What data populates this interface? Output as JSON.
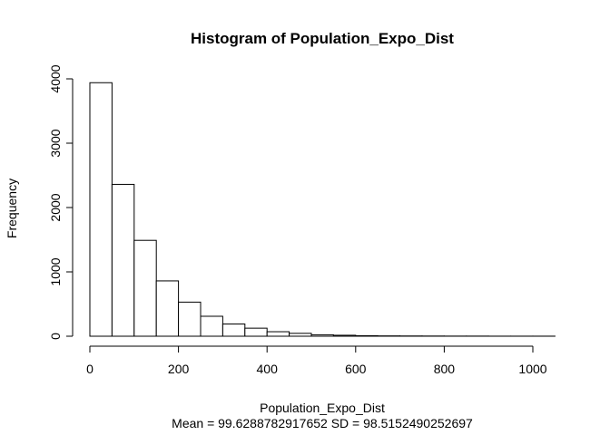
{
  "chart_data": {
    "type": "bar",
    "title": "Histogram of Population_Expo_Dist",
    "xlabel": "Population_Expo_Dist",
    "subtitle": "Mean = 99.6288782917652 SD = 98.5152490252697",
    "ylabel": "Frequency",
    "bin_width": 50,
    "bin_starts": [
      0,
      50,
      100,
      150,
      200,
      250,
      300,
      350,
      400,
      450,
      500,
      550,
      600,
      650,
      700,
      750,
      800,
      850,
      900,
      950,
      1000
    ],
    "values": [
      3940,
      2360,
      1490,
      860,
      530,
      310,
      190,
      125,
      70,
      45,
      22,
      15,
      8,
      5,
      4,
      3,
      2,
      2,
      1,
      1,
      1
    ],
    "xlim": [
      0,
      1050
    ],
    "ylim": [
      0,
      4000
    ],
    "x_ticks": [
      "0",
      "200",
      "400",
      "600",
      "800",
      "1000"
    ],
    "y_ticks": [
      "0",
      "1000",
      "2000",
      "3000",
      "4000"
    ],
    "bar_fill": "#ffffff",
    "bar_stroke": "#000000",
    "grid": false
  }
}
